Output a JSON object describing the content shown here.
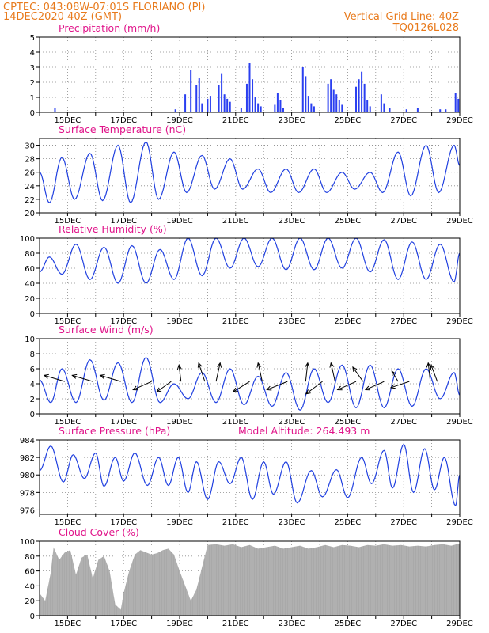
{
  "header": {
    "line1": "CPTEC:   043:08W-07:01S   FLORIANO (PI)",
    "line2": "14DEC2020 40Z (GMT)",
    "right1": "Vertical Grid Line: 40Z",
    "right2": "TQ0126L028"
  },
  "colors": {
    "header": "#e87a1c",
    "title": "#e0148a",
    "line": "#2040e0",
    "bar": "#2a3ff0",
    "cloud": "#a9a9a9"
  },
  "x_axis": {
    "tick_labels": [
      "15DEC",
      "17DEC",
      "19DEC",
      "21DEC",
      "23DEC",
      "25DEC",
      "27DEC",
      "29DEC"
    ],
    "day_start": 14.0,
    "day_end": 29.0
  },
  "chart_data": [
    {
      "type": "bar",
      "title": "Precipitation (mm/h)",
      "ylim": [
        0,
        5
      ],
      "yticks": [
        0,
        1,
        2,
        3,
        4,
        5
      ],
      "x_days": [
        14.55,
        18.85,
        19.2,
        19.4,
        19.6,
        19.7,
        19.8,
        20.0,
        20.1,
        20.4,
        20.5,
        20.6,
        20.7,
        20.8,
        21.2,
        21.4,
        21.5,
        21.6,
        21.7,
        21.8,
        21.9,
        22.4,
        22.5,
        22.6,
        22.7,
        23.4,
        23.5,
        23.6,
        23.7,
        23.8,
        24.3,
        24.4,
        24.5,
        24.6,
        24.7,
        24.8,
        25.3,
        25.4,
        25.5,
        25.6,
        25.7,
        25.8,
        26.2,
        26.3,
        26.5,
        27.1,
        27.5,
        28.3,
        28.5,
        28.85,
        28.95
      ],
      "values": [
        0.3,
        0.2,
        1.2,
        2.8,
        1.8,
        2.3,
        0.6,
        0.9,
        1.1,
        1.8,
        2.6,
        1.2,
        0.9,
        0.7,
        0.3,
        1.9,
        3.3,
        2.2,
        1.0,
        0.6,
        0.4,
        0.5,
        1.3,
        0.8,
        0.3,
        3.0,
        2.4,
        1.1,
        0.6,
        0.4,
        1.9,
        2.2,
        1.5,
        1.2,
        0.8,
        0.5,
        1.7,
        2.2,
        2.7,
        1.9,
        0.8,
        0.4,
        1.2,
        0.6,
        0.3,
        0.2,
        0.3,
        0.2,
        0.2,
        1.3,
        0.9
      ]
    },
    {
      "type": "line",
      "title": "Surface Temperature (nC)",
      "ylim": [
        20,
        31
      ],
      "yticks": [
        20,
        22,
        24,
        26,
        28,
        30
      ],
      "extrema": [
        [
          14.0,
          26.0
        ],
        [
          14.35,
          21.5
        ],
        [
          14.8,
          28.2
        ],
        [
          15.25,
          22.0
        ],
        [
          15.8,
          28.8
        ],
        [
          16.25,
          21.8
        ],
        [
          16.8,
          30.0
        ],
        [
          17.25,
          21.5
        ],
        [
          17.8,
          30.5
        ],
        [
          18.25,
          22.0
        ],
        [
          18.8,
          29.0
        ],
        [
          19.25,
          23.0
        ],
        [
          19.8,
          28.5
        ],
        [
          20.25,
          23.5
        ],
        [
          20.8,
          28.0
        ],
        [
          21.25,
          23.5
        ],
        [
          21.8,
          26.5
        ],
        [
          22.25,
          23.0
        ],
        [
          22.8,
          26.5
        ],
        [
          23.25,
          23.0
        ],
        [
          23.8,
          26.5
        ],
        [
          24.25,
          23.0
        ],
        [
          24.8,
          26.0
        ],
        [
          25.25,
          23.5
        ],
        [
          25.8,
          26.0
        ],
        [
          26.25,
          23.0
        ],
        [
          26.8,
          29.0
        ],
        [
          27.25,
          22.5
        ],
        [
          27.8,
          30.0
        ],
        [
          28.25,
          23.0
        ],
        [
          28.8,
          30.0
        ],
        [
          29.0,
          27.0
        ]
      ]
    },
    {
      "type": "line",
      "title": "Relative Humidity (%)",
      "ylim": [
        0,
        100
      ],
      "yticks": [
        0,
        20,
        40,
        60,
        80,
        100
      ],
      "extrema": [
        [
          14.0,
          55
        ],
        [
          14.35,
          75
        ],
        [
          14.8,
          52
        ],
        [
          15.3,
          92
        ],
        [
          15.8,
          45
        ],
        [
          16.3,
          88
        ],
        [
          16.8,
          40
        ],
        [
          17.3,
          90
        ],
        [
          17.8,
          40
        ],
        [
          18.3,
          85
        ],
        [
          18.8,
          45
        ],
        [
          19.3,
          100
        ],
        [
          19.8,
          50
        ],
        [
          20.3,
          100
        ],
        [
          20.8,
          60
        ],
        [
          21.3,
          100
        ],
        [
          21.8,
          62
        ],
        [
          22.3,
          100
        ],
        [
          22.8,
          58
        ],
        [
          23.3,
          100
        ],
        [
          23.8,
          58
        ],
        [
          24.3,
          100
        ],
        [
          24.8,
          60
        ],
        [
          25.3,
          100
        ],
        [
          25.8,
          55
        ],
        [
          26.3,
          98
        ],
        [
          26.8,
          45
        ],
        [
          27.3,
          95
        ],
        [
          27.8,
          45
        ],
        [
          28.3,
          92
        ],
        [
          28.8,
          42
        ],
        [
          29.0,
          80
        ]
      ]
    },
    {
      "type": "line",
      "title": "Surface Wind (m/s)",
      "ylim": [
        0,
        10
      ],
      "yticks": [
        0,
        2,
        4,
        6,
        8,
        10
      ],
      "extrema": [
        [
          14.0,
          4.5
        ],
        [
          14.4,
          1.5
        ],
        [
          14.8,
          6.0
        ],
        [
          15.3,
          1.5
        ],
        [
          15.8,
          7.2
        ],
        [
          16.3,
          1.8
        ],
        [
          16.8,
          6.8
        ],
        [
          17.3,
          1.5
        ],
        [
          17.8,
          7.5
        ],
        [
          18.3,
          1.5
        ],
        [
          18.8,
          4.0
        ],
        [
          19.3,
          2.0
        ],
        [
          19.8,
          5.5
        ],
        [
          20.3,
          1.5
        ],
        [
          20.8,
          6.0
        ],
        [
          21.3,
          1.2
        ],
        [
          21.8,
          5.0
        ],
        [
          22.3,
          1.0
        ],
        [
          22.8,
          5.5
        ],
        [
          23.3,
          0.5
        ],
        [
          23.8,
          6.0
        ],
        [
          24.3,
          1.5
        ],
        [
          24.8,
          6.5
        ],
        [
          25.3,
          0.8
        ],
        [
          25.8,
          6.5
        ],
        [
          26.3,
          0.8
        ],
        [
          26.8,
          6.0
        ],
        [
          27.3,
          1.0
        ],
        [
          27.8,
          6.0
        ],
        [
          28.3,
          2.0
        ],
        [
          28.8,
          5.5
        ],
        [
          29.0,
          2.5
        ]
      ],
      "vectors": [
        [
          14.9,
          -1.0,
          0.3
        ],
        [
          15.9,
          -1.0,
          0.3
        ],
        [
          16.9,
          -1.0,
          0.3
        ],
        [
          18.0,
          -0.9,
          -0.4
        ],
        [
          18.7,
          -0.7,
          -0.5
        ],
        [
          19.05,
          -0.1,
          0.8
        ],
        [
          19.9,
          -0.3,
          0.9
        ],
        [
          20.3,
          0.2,
          0.9
        ],
        [
          21.5,
          -0.8,
          -0.5
        ],
        [
          21.95,
          -0.2,
          0.9
        ],
        [
          22.85,
          -1.0,
          -0.4
        ],
        [
          23.5,
          0.1,
          0.9
        ],
        [
          24.1,
          -0.8,
          -0.6
        ],
        [
          24.55,
          -0.2,
          0.9
        ],
        [
          25.3,
          -0.9,
          -0.4
        ],
        [
          25.55,
          -0.5,
          0.7
        ],
        [
          26.3,
          -0.9,
          -0.4
        ],
        [
          26.8,
          -0.3,
          0.5
        ],
        [
          27.2,
          -0.9,
          -0.3
        ],
        [
          27.95,
          -0.1,
          0.9
        ],
        [
          28.2,
          -0.3,
          0.8
        ]
      ]
    },
    {
      "type": "line",
      "title": "Surface Pressure (hPa)",
      "annotation": "Model Altitude: 264.493 m",
      "ylim": [
        975.5,
        984
      ],
      "yticks": [
        976,
        978,
        980,
        982,
        984
      ],
      "extrema": [
        [
          14.0,
          980.5
        ],
        [
          14.4,
          983.3
        ],
        [
          14.85,
          979.2
        ],
        [
          15.2,
          982.3
        ],
        [
          15.6,
          979.6
        ],
        [
          16.0,
          982.5
        ],
        [
          16.3,
          978.7
        ],
        [
          16.7,
          982.0
        ],
        [
          17.0,
          979.3
        ],
        [
          17.4,
          982.5
        ],
        [
          17.85,
          978.8
        ],
        [
          18.25,
          982.0
        ],
        [
          18.6,
          978.8
        ],
        [
          18.95,
          982.0
        ],
        [
          19.3,
          978.0
        ],
        [
          19.6,
          981.5
        ],
        [
          20.0,
          977.2
        ],
        [
          20.4,
          981.5
        ],
        [
          20.8,
          979.0
        ],
        [
          21.2,
          982.0
        ],
        [
          21.6,
          977.2
        ],
        [
          22.0,
          981.5
        ],
        [
          22.35,
          977.8
        ],
        [
          22.8,
          981.5
        ],
        [
          23.2,
          976.8
        ],
        [
          23.7,
          980.5
        ],
        [
          24.1,
          977.5
        ],
        [
          24.6,
          980.6
        ],
        [
          25.0,
          977.4
        ],
        [
          25.5,
          982.0
        ],
        [
          25.85,
          979.0
        ],
        [
          26.3,
          982.8
        ],
        [
          26.6,
          978.5
        ],
        [
          27.0,
          983.5
        ],
        [
          27.35,
          978.0
        ],
        [
          27.75,
          983.0
        ],
        [
          28.1,
          978.3
        ],
        [
          28.45,
          982.0
        ],
        [
          28.85,
          976.5
        ],
        [
          29.0,
          980.0
        ]
      ]
    },
    {
      "type": "area",
      "title": "Cloud Cover (%)",
      "ylim": [
        0,
        100
      ],
      "yticks": [
        0,
        20,
        40,
        60,
        80,
        100
      ],
      "points": [
        [
          14.0,
          30
        ],
        [
          14.2,
          20
        ],
        [
          14.4,
          58
        ],
        [
          14.5,
          92
        ],
        [
          14.7,
          75
        ],
        [
          14.9,
          85
        ],
        [
          15.1,
          88
        ],
        [
          15.3,
          55
        ],
        [
          15.5,
          78
        ],
        [
          15.7,
          82
        ],
        [
          15.9,
          50
        ],
        [
          16.1,
          75
        ],
        [
          16.3,
          80
        ],
        [
          16.5,
          60
        ],
        [
          16.7,
          15
        ],
        [
          16.9,
          8
        ],
        [
          17.0,
          30
        ],
        [
          17.2,
          60
        ],
        [
          17.4,
          82
        ],
        [
          17.6,
          88
        ],
        [
          17.8,
          85
        ],
        [
          18.0,
          82
        ],
        [
          18.2,
          84
        ],
        [
          18.4,
          88
        ],
        [
          18.6,
          90
        ],
        [
          18.8,
          82
        ],
        [
          19.0,
          60
        ],
        [
          19.2,
          40
        ],
        [
          19.4,
          20
        ],
        [
          19.6,
          35
        ],
        [
          19.8,
          65
        ],
        [
          20.0,
          95
        ],
        [
          20.3,
          96
        ],
        [
          20.6,
          94
        ],
        [
          20.9,
          96
        ],
        [
          21.2,
          92
        ],
        [
          21.5,
          95
        ],
        [
          21.8,
          90
        ],
        [
          22.1,
          92
        ],
        [
          22.4,
          94
        ],
        [
          22.7,
          90
        ],
        [
          23.0,
          92
        ],
        [
          23.3,
          94
        ],
        [
          23.6,
          90
        ],
        [
          23.9,
          92
        ],
        [
          24.2,
          95
        ],
        [
          24.5,
          92
        ],
        [
          24.8,
          95
        ],
        [
          25.1,
          94
        ],
        [
          25.4,
          92
        ],
        [
          25.7,
          95
        ],
        [
          26.0,
          94
        ],
        [
          26.3,
          96
        ],
        [
          26.6,
          94
        ],
        [
          26.9,
          95
        ],
        [
          27.2,
          93
        ],
        [
          27.5,
          94
        ],
        [
          27.8,
          93
        ],
        [
          28.1,
          95
        ],
        [
          28.4,
          96
        ],
        [
          28.7,
          94
        ],
        [
          29.0,
          97
        ]
      ]
    }
  ]
}
